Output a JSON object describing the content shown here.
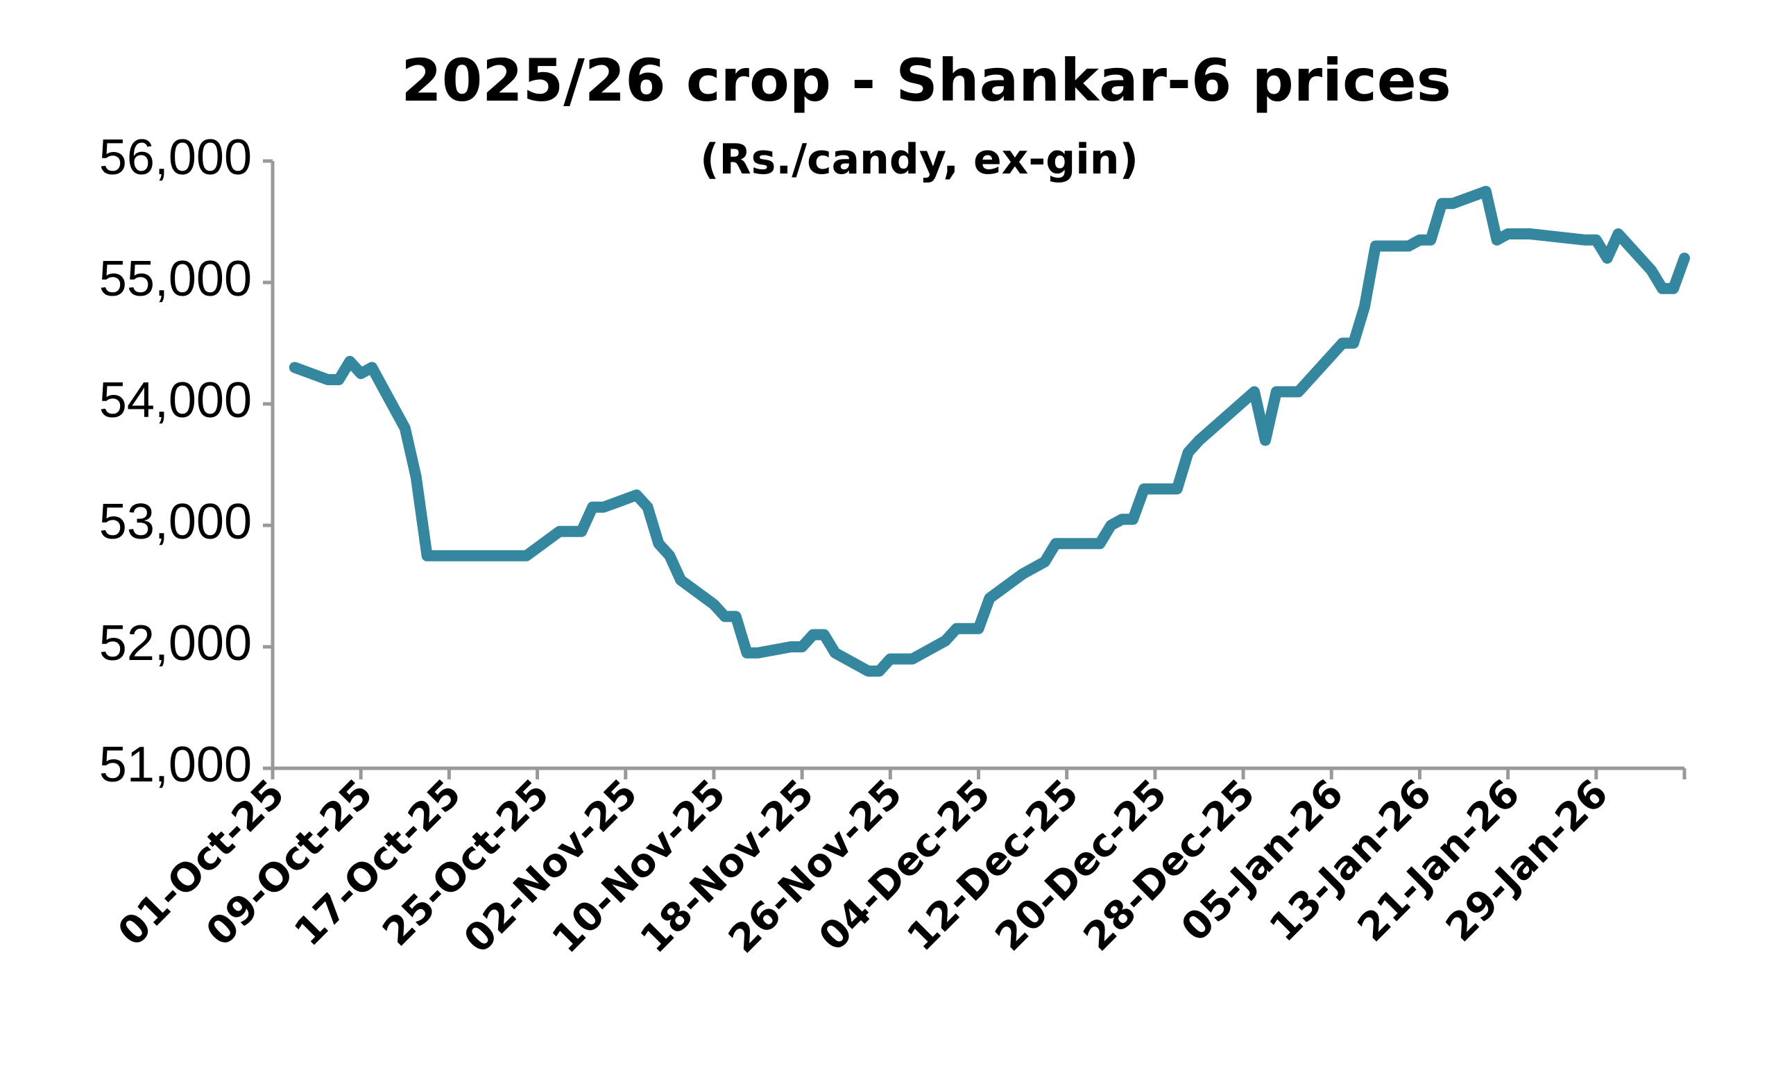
{
  "chart_data": {
    "type": "line",
    "title": "2025/26 crop - Shankar-6 prices",
    "subtitle": "(Rs./candy, ex-gin)",
    "color": "#34879e",
    "x": [
      "2025-10-03",
      "2025-10-06",
      "2025-10-07",
      "2025-10-08",
      "2025-10-09",
      "2025-10-10",
      "2025-10-13",
      "2025-10-14",
      "2025-10-15",
      "2025-10-24",
      "2025-10-27",
      "2025-10-29",
      "2025-10-30",
      "2025-10-31",
      "2025-11-03",
      "2025-11-04",
      "2025-11-05",
      "2025-11-06",
      "2025-11-07",
      "2025-11-10",
      "2025-11-11",
      "2025-11-12",
      "2025-11-13",
      "2025-11-14",
      "2025-11-17",
      "2025-11-18",
      "2025-11-19",
      "2025-11-20",
      "2025-11-21",
      "2025-11-24",
      "2025-11-25",
      "2025-11-26",
      "2025-11-28",
      "2025-12-01",
      "2025-12-02",
      "2025-12-04",
      "2025-12-05",
      "2025-12-08",
      "2025-12-10",
      "2025-12-11",
      "2025-12-15",
      "2025-12-16",
      "2025-12-17",
      "2025-12-18",
      "2025-12-19",
      "2025-12-22",
      "2025-12-23",
      "2025-12-24",
      "2025-12-29",
      "2025-12-30",
      "2025-12-31",
      "2026-01-02",
      "2026-01-06",
      "2026-01-07",
      "2026-01-08",
      "2026-01-09",
      "2026-01-12",
      "2026-01-13",
      "2026-01-14",
      "2026-01-15",
      "2026-01-16",
      "2026-01-19",
      "2026-01-20",
      "2026-01-21",
      "2026-01-23",
      "2026-01-28",
      "2026-01-29",
      "2026-01-30",
      "2026-01-31",
      "2026-02-03",
      "2026-02-04",
      "2026-02-05",
      "2026-02-06"
    ],
    "values": [
      54300,
      54200,
      54200,
      54350,
      54250,
      54300,
      53800,
      53400,
      52750,
      52750,
      52950,
      52950,
      53150,
      53150,
      53250,
      53150,
      52850,
      52750,
      52550,
      52350,
      52250,
      52250,
      51950,
      51950,
      52000,
      52000,
      52100,
      52100,
      51950,
      51800,
      51800,
      51900,
      51900,
      52050,
      52150,
      52150,
      52400,
      52600,
      52700,
      52850,
      52850,
      53000,
      53050,
      53050,
      53300,
      53300,
      53600,
      53700,
      54100,
      53700,
      54100,
      54100,
      54500,
      54500,
      54800,
      55300,
      55300,
      55350,
      55350,
      55650,
      55650,
      55750,
      55350,
      55400,
      55400,
      55350,
      55350,
      55200,
      55400,
      55100,
      54950,
      54950,
      55200
    ],
    "xlim": [
      "2025-10-01",
      "2026-02-06"
    ],
    "xticks": [
      {
        "value": "2025-10-01",
        "label": "01-Oct-25"
      },
      {
        "value": "2025-10-09",
        "label": "09-Oct-25"
      },
      {
        "value": "2025-10-17",
        "label": "17-Oct-25"
      },
      {
        "value": "2025-10-25",
        "label": "25-Oct-25"
      },
      {
        "value": "2025-11-02",
        "label": "02-Nov-25"
      },
      {
        "value": "2025-11-10",
        "label": "10-Nov-25"
      },
      {
        "value": "2025-11-18",
        "label": "18-Nov-25"
      },
      {
        "value": "2025-11-26",
        "label": "26-Nov-25"
      },
      {
        "value": "2025-12-04",
        "label": "04-Dec-25"
      },
      {
        "value": "2025-12-12",
        "label": "12-Dec-25"
      },
      {
        "value": "2025-12-20",
        "label": "20-Dec-25"
      },
      {
        "value": "2025-12-28",
        "label": "28-Dec-25"
      },
      {
        "value": "2026-01-05",
        "label": "05-Jan-26"
      },
      {
        "value": "2026-01-13",
        "label": "13-Jan-26"
      },
      {
        "value": "2026-01-21",
        "label": "21-Jan-26"
      },
      {
        "value": "2026-01-29",
        "label": "29-Jan-26"
      }
    ],
    "ylim": [
      51000,
      56000
    ],
    "yticks": [
      {
        "value": 51000,
        "label": "51,000"
      },
      {
        "value": 52000,
        "label": "52,000"
      },
      {
        "value": 53000,
        "label": "53,000"
      },
      {
        "value": 54000,
        "label": "54,000"
      },
      {
        "value": 55000,
        "label": "55,000"
      },
      {
        "value": 56000,
        "label": "56,000"
      }
    ],
    "grid": false
  }
}
